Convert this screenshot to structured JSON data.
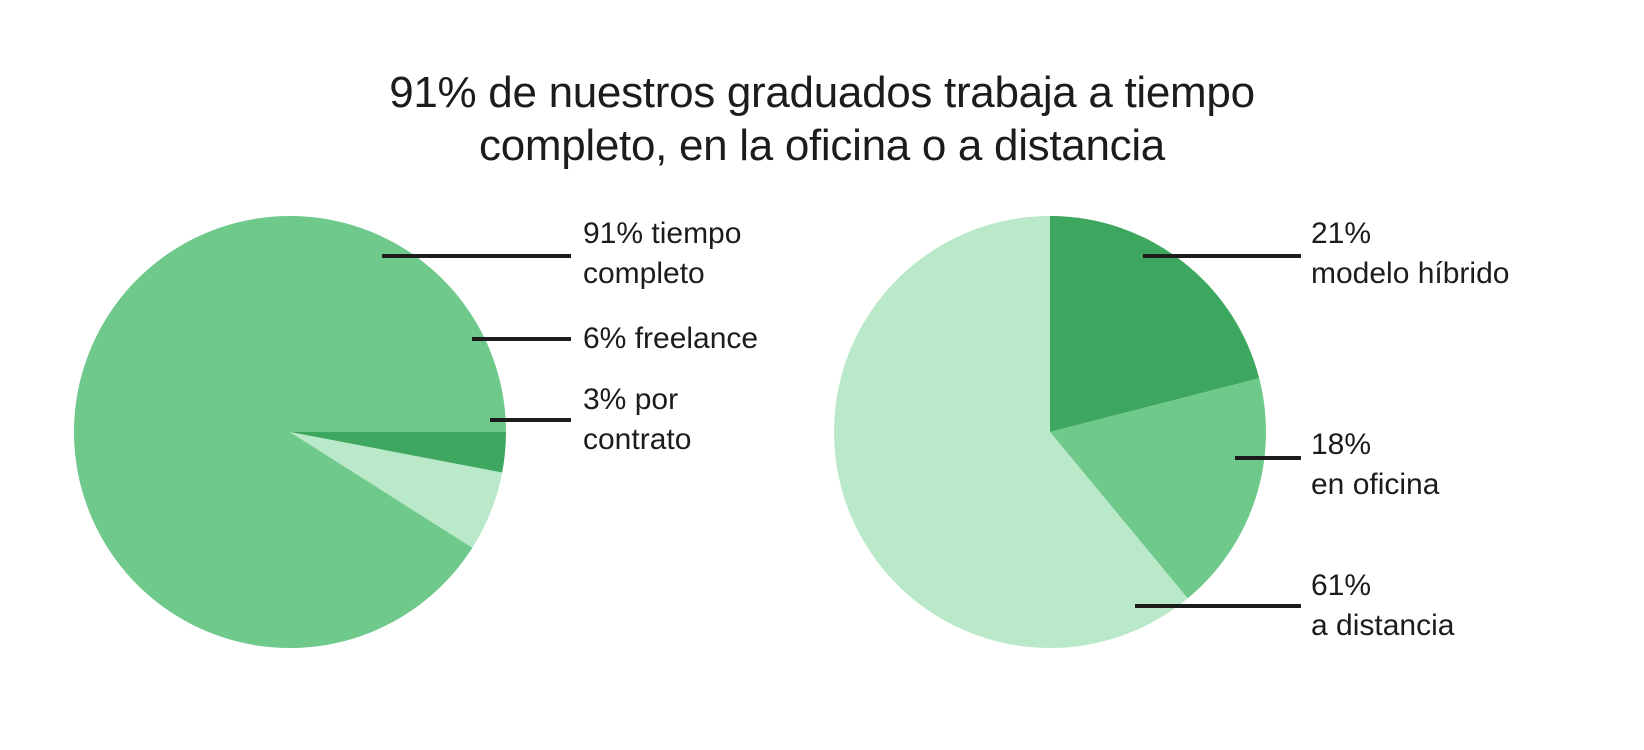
{
  "title_lines": [
    "91% de nuestros graduados trabaja a tiempo",
    "completo, en la oficina o a distancia"
  ],
  "chart_data": [
    {
      "type": "pie",
      "title": "",
      "slices": [
        {
          "label_lines": [
            "91% tiempo",
            "completo"
          ],
          "value": 91,
          "color": "#6fc98b"
        },
        {
          "label_lines": [
            "6% freelance"
          ],
          "value": 6,
          "color": "#b9e9c9"
        },
        {
          "label_lines": [
            "3% por",
            "contrato"
          ],
          "value": 3,
          "color": "#3ea75f"
        }
      ]
    },
    {
      "type": "pie",
      "title": "",
      "slices": [
        {
          "label_lines": [
            "21%",
            "modelo híbrido"
          ],
          "value": 21,
          "color": "#3ea75f"
        },
        {
          "label_lines": [
            "18%",
            "en oficina"
          ],
          "value": 18,
          "color": "#6fc98b"
        },
        {
          "label_lines": [
            "61%",
            "a distancia"
          ],
          "value": 61,
          "color": "#b9e9c9"
        }
      ]
    }
  ]
}
